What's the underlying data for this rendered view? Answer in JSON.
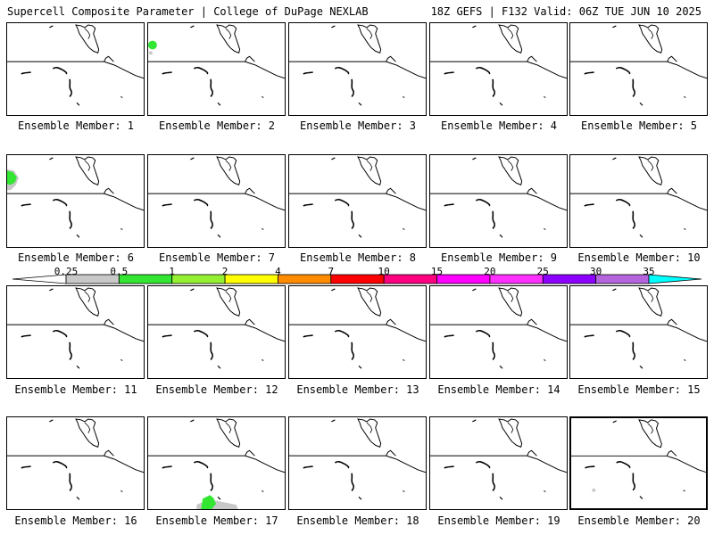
{
  "header": {
    "left": "Supercell Composite Parameter | College of DuPage NEXLAB",
    "right": "18Z GEFS | F132 Valid: 06Z TUE JUN 10 2025"
  },
  "colorbar": {
    "ticks": [
      "0.25",
      "0.5",
      "1",
      "2",
      "4",
      "7",
      "10",
      "15",
      "20",
      "25",
      "30",
      "35"
    ],
    "colors": [
      "#ffffff",
      "#c8c8c8",
      "#32e632",
      "#96f032",
      "#ffff00",
      "#ff8c00",
      "#ff0000",
      "#ff0080",
      "#ff00ff",
      "#ff30ff",
      "#8c00ff",
      "#b464dc",
      "#00ffff"
    ]
  },
  "members": [
    {
      "label": "Ensemble Member: 1"
    },
    {
      "label": "Ensemble Member: 2",
      "blobs": [
        {
          "color": "#32e632"
        },
        {
          "color": "#c8c8c8"
        }
      ]
    },
    {
      "label": "Ensemble Member: 3"
    },
    {
      "label": "Ensemble Member: 4"
    },
    {
      "label": "Ensemble Member: 5"
    },
    {
      "label": "Ensemble Member: 6",
      "blobs": [
        {
          "color": "#32e632"
        },
        {
          "color": "#c8c8c8"
        }
      ]
    },
    {
      "label": "Ensemble Member: 7"
    },
    {
      "label": "Ensemble Member: 8"
    },
    {
      "label": "Ensemble Member: 9"
    },
    {
      "label": "Ensemble Member: 10"
    },
    {
      "label": "Ensemble Member: 11"
    },
    {
      "label": "Ensemble Member: 12"
    },
    {
      "label": "Ensemble Member: 13"
    },
    {
      "label": "Ensemble Member: 14"
    },
    {
      "label": "Ensemble Member: 15"
    },
    {
      "label": "Ensemble Member: 16"
    },
    {
      "label": "Ensemble Member: 17",
      "blobs": [
        {
          "color": "#32e632"
        },
        {
          "color": "#c8c8c8"
        }
      ]
    },
    {
      "label": "Ensemble Member: 18"
    },
    {
      "label": "Ensemble Member: 19"
    },
    {
      "label": "Ensemble Member: 20",
      "blobs": [
        {
          "color": "#c8c8c8"
        }
      ],
      "selected": true
    }
  ]
}
